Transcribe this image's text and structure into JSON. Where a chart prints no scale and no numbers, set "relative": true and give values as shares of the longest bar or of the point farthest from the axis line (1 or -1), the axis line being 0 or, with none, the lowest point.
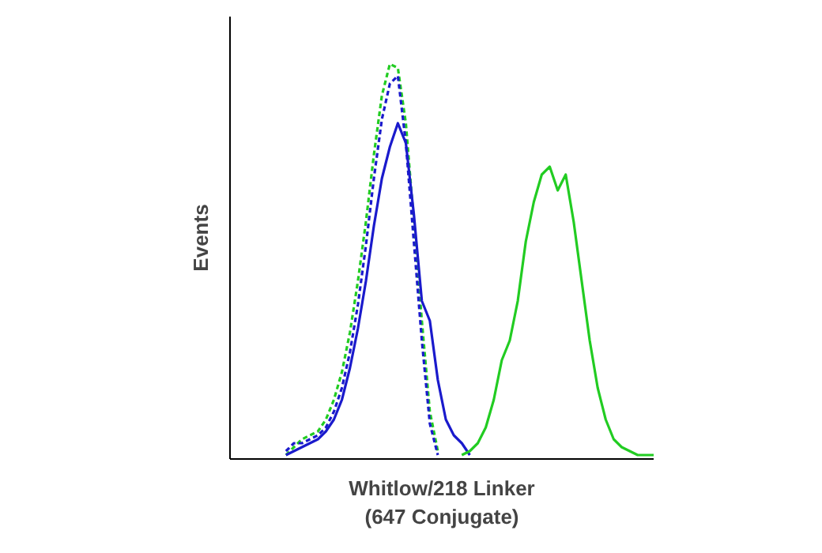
{
  "chart_data": {
    "type": "line",
    "relative": true,
    "xlabel": "Whitlow/218 Linker\n(647 Conjugate)",
    "ylabel": "Events",
    "tick_labels": false,
    "grid": false,
    "marker": "none",
    "categories": [
      null,
      null,
      null,
      null,
      null,
      null,
      null,
      null,
      null,
      null,
      null,
      null,
      null,
      null,
      null,
      null,
      null,
      null,
      null,
      null,
      null,
      null,
      null,
      null,
      null,
      null,
      null,
      null,
      null,
      null,
      null,
      null,
      null,
      null,
      null,
      null,
      null,
      null,
      null,
      null,
      null,
      null,
      null,
      null,
      null,
      null,
      null,
      null,
      null,
      null,
      null,
      null,
      null,
      null
    ],
    "series": [
      {
        "color": "#22cc22",
        "line_style": "dashed",
        "values": [
          null,
          null,
          null,
          null,
          null,
          null,
          null,
          0.01,
          0.03,
          0.05,
          0.06,
          0.07,
          0.1,
          0.15,
          0.22,
          0.32,
          0.45,
          0.6,
          0.77,
          0.92,
          1,
          0.99,
          0.85,
          0.6,
          0.35,
          0.12,
          0.02,
          null,
          null,
          null,
          null,
          null,
          null,
          null,
          null,
          null,
          null,
          null,
          null,
          null,
          null,
          null,
          null,
          null,
          null,
          null,
          null,
          null,
          null,
          null,
          null,
          null,
          null,
          null
        ]
      },
      {
        "color": "#1a1acc",
        "line_style": "dashed",
        "values": [
          null,
          null,
          null,
          null,
          null,
          null,
          null,
          0.02,
          0.04,
          0.04,
          0.05,
          0.06,
          0.08,
          0.12,
          0.18,
          0.27,
          0.39,
          0.54,
          0.71,
          0.86,
          0.95,
          0.97,
          0.8,
          0.55,
          0.3,
          0.09,
          0.01,
          null,
          null,
          null,
          null,
          null,
          null,
          null,
          null,
          null,
          null,
          null,
          null,
          null,
          null,
          null,
          null,
          null,
          null,
          null,
          null,
          null,
          null,
          null,
          null,
          null,
          null,
          null
        ]
      },
      {
        "color": "#1a1acc",
        "line_style": "solid",
        "values": [
          null,
          null,
          null,
          null,
          null,
          null,
          null,
          0.01,
          0.02,
          0.03,
          0.04,
          0.05,
          0.07,
          0.1,
          0.15,
          0.23,
          0.33,
          0.45,
          0.59,
          0.71,
          0.79,
          0.85,
          0.8,
          0.62,
          0.4,
          0.35,
          0.2,
          0.1,
          0.06,
          0.04,
          0.01,
          null,
          null,
          null,
          null,
          null,
          null,
          null,
          null,
          null,
          null,
          null,
          null,
          null,
          null,
          null,
          null,
          null,
          null,
          null,
          null,
          null,
          null,
          null
        ]
      },
      {
        "color": "#22cc22",
        "line_style": "solid",
        "values": [
          null,
          null,
          null,
          null,
          null,
          null,
          null,
          null,
          null,
          null,
          null,
          null,
          null,
          null,
          null,
          null,
          null,
          null,
          null,
          null,
          null,
          null,
          null,
          null,
          null,
          null,
          null,
          null,
          null,
          0.01,
          0.02,
          0.04,
          0.08,
          0.15,
          0.25,
          0.3,
          0.4,
          0.55,
          0.65,
          0.72,
          0.74,
          0.68,
          0.72,
          0.6,
          0.45,
          0.3,
          0.18,
          0.1,
          0.05,
          0.03,
          0.02,
          0.01,
          0.01,
          0.01
        ]
      }
    ]
  }
}
